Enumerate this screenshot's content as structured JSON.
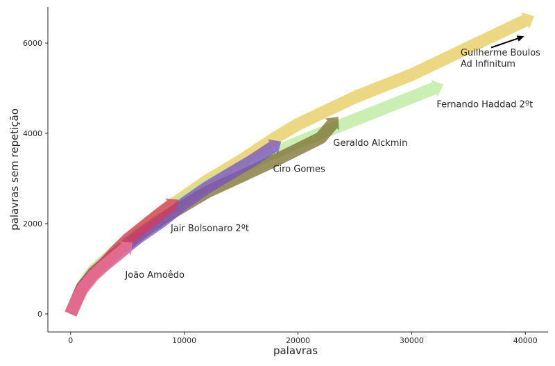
{
  "chart_data": {
    "type": "line",
    "xlabel": "palavras",
    "ylabel": "palavras sem repetição",
    "xlim": [
      -2000,
      42000
    ],
    "ylim": [
      -400,
      6800
    ],
    "xticks": [
      0,
      10000,
      20000,
      30000,
      40000
    ],
    "yticks": [
      0,
      2000,
      4000,
      6000
    ],
    "grid": false,
    "series": [
      {
        "name": "Guilherme Boulos",
        "color": "#e6c95a",
        "x": [
          0,
          1000,
          2000,
          4000,
          6000,
          8000,
          10000,
          12000,
          15000,
          18000,
          20000,
          25000,
          30000,
          35000,
          40000
        ],
        "y": [
          0,
          600,
          950,
          1400,
          1850,
          2250,
          2600,
          2950,
          3400,
          3900,
          4200,
          4800,
          5300,
          5900,
          6500
        ]
      },
      {
        "name": "Fernando Haddad 2ºt",
        "color": "#b9e89a",
        "x": [
          0,
          1000,
          2000,
          4000,
          6000,
          8000,
          10000,
          12000,
          15000,
          20000,
          25000,
          28000,
          32000
        ],
        "y": [
          0,
          600,
          940,
          1380,
          1800,
          2200,
          2520,
          2850,
          3250,
          3800,
          4300,
          4600,
          5000
        ]
      },
      {
        "name": "Geraldo Alckmin",
        "color": "#7a6e2c",
        "x": [
          0,
          1000,
          2000,
          4000,
          6000,
          8000,
          10000,
          12000,
          15000,
          18000,
          20000,
          22000,
          23000
        ],
        "y": [
          0,
          580,
          900,
          1350,
          1750,
          2100,
          2400,
          2700,
          3050,
          3400,
          3650,
          3900,
          4200
        ]
      },
      {
        "name": "Ciro Gomes",
        "color": "#7b4fc4",
        "x": [
          0,
          1000,
          2000,
          4000,
          6000,
          8000,
          10000,
          12000,
          14000,
          16000,
          17800
        ],
        "y": [
          0,
          570,
          880,
          1300,
          1700,
          2050,
          2450,
          2800,
          3100,
          3400,
          3700
        ]
      },
      {
        "name": "Jair Bolsonaro 2ºt",
        "color": "#d63a5c",
        "x": [
          0,
          1000,
          2000,
          3000,
          4000,
          5000,
          6000,
          7000,
          8000,
          8800
        ],
        "y": [
          0,
          560,
          870,
          1120,
          1400,
          1650,
          1850,
          2050,
          2250,
          2400
        ]
      },
      {
        "name": "João Amoêdo",
        "color": "#ee7a98",
        "x": [
          0,
          500,
          1000,
          2000,
          3000,
          4000,
          4800
        ],
        "y": [
          0,
          280,
          540,
          850,
          1080,
          1280,
          1450
        ]
      }
    ],
    "annotations": [
      {
        "text": "Guilherme Boulos",
        "x": 34300,
        "y": 5720
      },
      {
        "text": "Ad Infinitum",
        "x": 34300,
        "y": 5480
      },
      {
        "text": "Fernando Haddad 2ºt",
        "x": 32200,
        "y": 4580
      },
      {
        "text": "Geraldo Alckmin",
        "x": 23100,
        "y": 3720
      },
      {
        "text": "Ciro Gomes",
        "x": 17800,
        "y": 3150
      },
      {
        "text": "Jair Bolsonaro 2ºt",
        "x": 8800,
        "y": 1830
      },
      {
        "text": "João Amoêdo",
        "x": 4800,
        "y": 800
      }
    ],
    "arrow": {
      "from": [
        37000,
        5900
      ],
      "to": [
        39900,
        6150
      ],
      "color": "#000000"
    }
  }
}
